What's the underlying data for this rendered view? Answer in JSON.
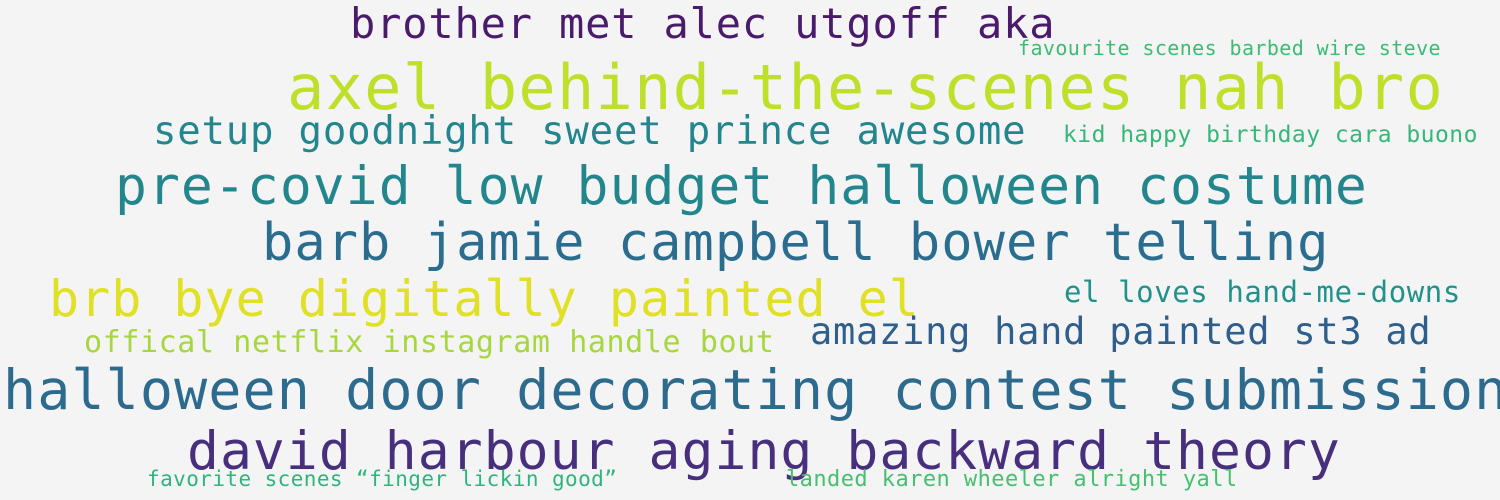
{
  "phrases": [
    {
      "text": "brother met alec utgoff aka",
      "color": "#4a1b6b"
    },
    {
      "text": "favourite scenes barbed wire steve",
      "color": "#3dbb74"
    },
    {
      "text": "axel behind-the-scenes nah bro",
      "color": "#bfe02a"
    },
    {
      "text": "setup goodnight sweet prince awesome",
      "color": "#23858e"
    },
    {
      "text": "kid happy birthday cara buono",
      "color": "#35b779"
    },
    {
      "text": "pre-covid low budget halloween costume",
      "color": "#23868d"
    },
    {
      "text": "barb jamie campbell bower telling",
      "color": "#2b6d8e"
    },
    {
      "text": "brb bye digitally painted el",
      "color": "#e0e024"
    },
    {
      "text": "el loves hand-me-downs",
      "color": "#21918c"
    },
    {
      "text": "offical netflix instagram handle bout",
      "color": "#a7d640"
    },
    {
      "text": "amazing hand painted st3 ad",
      "color": "#2e5f8c"
    },
    {
      "text": "halloween door decorating contest submission",
      "color": "#2c6a8e"
    },
    {
      "text": "david harbour aging backward theory",
      "color": "#472f7d"
    },
    {
      "text": "favorite scenes “finger lickin good”",
      "color": "#2fb47c"
    },
    {
      "text": "landed karen wheeler alright yall",
      "color": "#45c06f"
    }
  ]
}
